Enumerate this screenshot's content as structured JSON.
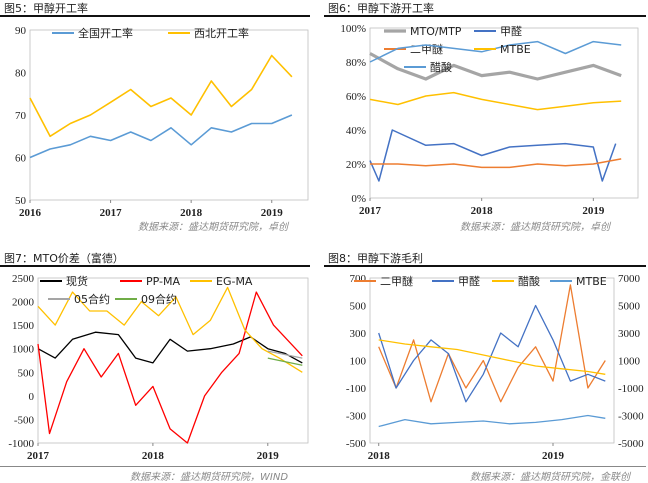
{
  "sources": {
    "top": "数据来源：盛达期货研究院，卓创",
    "bottom_left": "数据来源：盛达期货研究院，WIND",
    "bottom_right": "数据来源：盛达期货研究院，金联创"
  },
  "chart_data": [
    {
      "id": "fig5",
      "type": "line",
      "title": "图5：甲醇开工率",
      "x_tick_labels": [
        "2016",
        "2017",
        "2018",
        "2019"
      ],
      "y_tick_labels": [
        "50",
        "60",
        "70",
        "80",
        "90"
      ],
      "ylim": [
        50,
        90
      ],
      "legend_placement": "top",
      "grid": false,
      "series": [
        {
          "name": "全国开工率",
          "color": "#5B9BD5",
          "points": [
            [
              2016.0,
              60
            ],
            [
              2016.25,
              62
            ],
            [
              2016.5,
              63
            ],
            [
              2016.75,
              65
            ],
            [
              2017.0,
              64
            ],
            [
              2017.25,
              66
            ],
            [
              2017.5,
              64
            ],
            [
              2017.75,
              67
            ],
            [
              2018.0,
              63
            ],
            [
              2018.25,
              67
            ],
            [
              2018.5,
              66
            ],
            [
              2018.75,
              68
            ],
            [
              2019.0,
              68
            ],
            [
              2019.25,
              70
            ]
          ]
        },
        {
          "name": "西北开工率",
          "color": "#FFC000",
          "points": [
            [
              2016.0,
              74
            ],
            [
              2016.25,
              65
            ],
            [
              2016.5,
              68
            ],
            [
              2016.75,
              70
            ],
            [
              2017.0,
              73
            ],
            [
              2017.25,
              76
            ],
            [
              2017.5,
              72
            ],
            [
              2017.75,
              74
            ],
            [
              2018.0,
              70
            ],
            [
              2018.25,
              78
            ],
            [
              2018.5,
              72
            ],
            [
              2018.75,
              76
            ],
            [
              2019.0,
              84
            ],
            [
              2019.25,
              79
            ]
          ]
        }
      ]
    },
    {
      "id": "fig6",
      "type": "line",
      "title": "图6：甲醇下游开工率",
      "x_tick_labels": [
        "2017",
        "2018",
        "2019"
      ],
      "y_tick_labels": [
        "0%",
        "20%",
        "40%",
        "60%",
        "80%",
        "100%"
      ],
      "ylim": [
        0,
        100
      ],
      "legend_placement": "top",
      "grid": false,
      "series": [
        {
          "name": "MTO/MTP",
          "color": "#A5A5A5",
          "points": [
            [
              2017.0,
              85
            ],
            [
              2017.25,
              76
            ],
            [
              2017.5,
              70
            ],
            [
              2017.75,
              78
            ],
            [
              2018.0,
              72
            ],
            [
              2018.25,
              74
            ],
            [
              2018.5,
              70
            ],
            [
              2018.75,
              74
            ],
            [
              2019.0,
              78
            ],
            [
              2019.25,
              72
            ]
          ]
        },
        {
          "name": "甲醛",
          "color": "#4472C4",
          "points": [
            [
              2017.0,
              22
            ],
            [
              2017.08,
              10
            ],
            [
              2017.2,
              40
            ],
            [
              2017.5,
              31
            ],
            [
              2017.75,
              32
            ],
            [
              2018.0,
              25
            ],
            [
              2018.25,
              30
            ],
            [
              2018.5,
              31
            ],
            [
              2018.75,
              32
            ],
            [
              2019.0,
              30
            ],
            [
              2019.08,
              10
            ],
            [
              2019.2,
              32
            ]
          ]
        },
        {
          "name": "二甲醚",
          "color": "#ED7D31",
          "points": [
            [
              2017.0,
              20
            ],
            [
              2017.25,
              20
            ],
            [
              2017.5,
              19
            ],
            [
              2017.75,
              20
            ],
            [
              2018.0,
              18
            ],
            [
              2018.25,
              18
            ],
            [
              2018.5,
              20
            ],
            [
              2018.75,
              19
            ],
            [
              2019.0,
              20
            ],
            [
              2019.25,
              23
            ]
          ]
        },
        {
          "name": "醋酸",
          "color": "#5B9BD5",
          "points": [
            [
              2017.0,
              80
            ],
            [
              2017.25,
              88
            ],
            [
              2017.5,
              90
            ],
            [
              2017.75,
              88
            ],
            [
              2018.0,
              86
            ],
            [
              2018.25,
              90
            ],
            [
              2018.5,
              92
            ],
            [
              2018.75,
              85
            ],
            [
              2019.0,
              92
            ],
            [
              2019.25,
              90
            ]
          ]
        },
        {
          "name": "MTBE",
          "color": "#FFC000",
          "points": [
            [
              2017.0,
              58
            ],
            [
              2017.25,
              55
            ],
            [
              2017.5,
              60
            ],
            [
              2017.75,
              62
            ],
            [
              2018.0,
              58
            ],
            [
              2018.25,
              55
            ],
            [
              2018.5,
              52
            ],
            [
              2018.75,
              54
            ],
            [
              2019.0,
              56
            ],
            [
              2019.25,
              57
            ]
          ]
        }
      ]
    },
    {
      "id": "fig7",
      "type": "line",
      "title": "图7：MTO价差（富德）",
      "x_tick_labels": [
        "2017",
        "2018",
        "2019"
      ],
      "y_tick_labels": [
        "-1000",
        "-500",
        "0",
        "500",
        "1000",
        "1500",
        "2000",
        "2500"
      ],
      "ylim": [
        -1000,
        2500
      ],
      "legend_placement": "top",
      "grid": false,
      "series": [
        {
          "name": "现货",
          "color": "#000000",
          "points": [
            [
              2017.0,
              1000
            ],
            [
              2017.15,
              800
            ],
            [
              2017.3,
              1200
            ],
            [
              2017.5,
              1350
            ],
            [
              2017.7,
              1300
            ],
            [
              2017.85,
              800
            ],
            [
              2018.0,
              700
            ],
            [
              2018.15,
              1200
            ],
            [
              2018.3,
              950
            ],
            [
              2018.5,
              1000
            ],
            [
              2018.7,
              1100
            ],
            [
              2018.85,
              1250
            ],
            [
              2019.0,
              1000
            ],
            [
              2019.15,
              900
            ],
            [
              2019.3,
              700
            ]
          ]
        },
        {
          "name": "PP-MA",
          "color": "#FF0000",
          "points": [
            [
              2017.0,
              1100
            ],
            [
              2017.1,
              -800
            ],
            [
              2017.25,
              300
            ],
            [
              2017.4,
              1000
            ],
            [
              2017.55,
              400
            ],
            [
              2017.7,
              900
            ],
            [
              2017.85,
              -200
            ],
            [
              2018.0,
              200
            ],
            [
              2018.15,
              -700
            ],
            [
              2018.3,
              -1000
            ],
            [
              2018.45,
              0
            ],
            [
              2018.6,
              500
            ],
            [
              2018.75,
              900
            ],
            [
              2018.9,
              2200
            ],
            [
              2019.05,
              1500
            ],
            [
              2019.3,
              850
            ]
          ]
        },
        {
          "name": "EG-MA",
          "color": "#FFC000",
          "points": [
            [
              2017.0,
              1900
            ],
            [
              2017.15,
              1500
            ],
            [
              2017.3,
              2200
            ],
            [
              2017.45,
              1800
            ],
            [
              2017.6,
              1800
            ],
            [
              2017.75,
              1500
            ],
            [
              2017.9,
              2000
            ],
            [
              2018.05,
              1700
            ],
            [
              2018.2,
              2100
            ],
            [
              2018.35,
              1300
            ],
            [
              2018.5,
              1600
            ],
            [
              2018.65,
              2300
            ],
            [
              2018.8,
              1400
            ],
            [
              2018.95,
              1000
            ],
            [
              2019.1,
              800
            ],
            [
              2019.3,
              500
            ]
          ]
        },
        {
          "name": "05合约",
          "color": "#A5A5A5",
          "points": [
            [
              2019.0,
              950
            ],
            [
              2019.1,
              900
            ],
            [
              2019.2,
              850
            ],
            [
              2019.3,
              800
            ]
          ]
        },
        {
          "name": "09合约",
          "color": "#70AD47",
          "points": [
            [
              2019.0,
              800
            ],
            [
              2019.1,
              750
            ],
            [
              2019.2,
              700
            ],
            [
              2019.3,
              650
            ]
          ]
        }
      ]
    },
    {
      "id": "fig8",
      "type": "line",
      "title": "图8：甲醇下游毛利",
      "x_tick_labels": [
        "2018",
        "2019"
      ],
      "y_tick_labels": [
        "-500",
        "-300",
        "-100",
        "100",
        "300",
        "500",
        "700"
      ],
      "ylim": [
        -500,
        700
      ],
      "y2_tick_labels": [
        "-5000",
        "-3000",
        "-1000",
        "1000",
        "3000",
        "5000",
        "7000"
      ],
      "y2lim": [
        -5000,
        7000
      ],
      "legend_placement": "top",
      "grid": false,
      "series": [
        {
          "name": "二甲醚",
          "color": "#ED7D31",
          "axis": "left",
          "points": [
            [
              2018.0,
              200
            ],
            [
              2018.1,
              -100
            ],
            [
              2018.2,
              250
            ],
            [
              2018.3,
              -200
            ],
            [
              2018.4,
              150
            ],
            [
              2018.5,
              -100
            ],
            [
              2018.6,
              100
            ],
            [
              2018.7,
              -200
            ],
            [
              2018.8,
              50
            ],
            [
              2018.9,
              200
            ],
            [
              2019.0,
              -50
            ],
            [
              2019.1,
              650
            ],
            [
              2019.2,
              -100
            ],
            [
              2019.3,
              100
            ]
          ]
        },
        {
          "name": "甲醛",
          "color": "#4472C4",
          "axis": "left",
          "points": [
            [
              2018.0,
              300
            ],
            [
              2018.1,
              -100
            ],
            [
              2018.2,
              100
            ],
            [
              2018.3,
              250
            ],
            [
              2018.4,
              150
            ],
            [
              2018.5,
              -200
            ],
            [
              2018.6,
              0
            ],
            [
              2018.7,
              300
            ],
            [
              2018.8,
              200
            ],
            [
              2018.9,
              500
            ],
            [
              2019.0,
              250
            ],
            [
              2019.1,
              -50
            ],
            [
              2019.2,
              0
            ],
            [
              2019.3,
              -50
            ]
          ]
        },
        {
          "name": "醋酸",
          "color": "#FFC000",
          "axis": "right",
          "points": [
            [
              2018.0,
              2500
            ],
            [
              2018.15,
              2200
            ],
            [
              2018.3,
              2000
            ],
            [
              2018.45,
              1800
            ],
            [
              2018.6,
              1400
            ],
            [
              2018.75,
              1000
            ],
            [
              2018.9,
              600
            ],
            [
              2019.05,
              400
            ],
            [
              2019.2,
              200
            ],
            [
              2019.3,
              0
            ]
          ]
        },
        {
          "name": "MTBE",
          "color": "#5B9BD5",
          "axis": "right",
          "points": [
            [
              2018.0,
              -3800
            ],
            [
              2018.15,
              -3300
            ],
            [
              2018.3,
              -3600
            ],
            [
              2018.45,
              -3500
            ],
            [
              2018.6,
              -3400
            ],
            [
              2018.75,
              -3600
            ],
            [
              2018.9,
              -3500
            ],
            [
              2019.05,
              -3300
            ],
            [
              2019.2,
              -3000
            ],
            [
              2019.3,
              -3200
            ]
          ]
        }
      ]
    }
  ]
}
